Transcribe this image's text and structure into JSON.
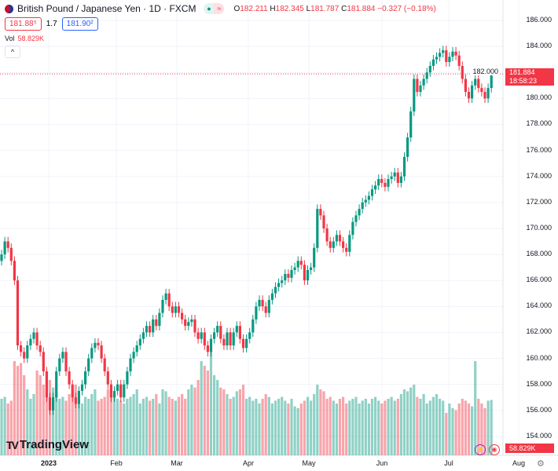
{
  "header": {
    "title": "British Pound / Japanese Yen · 1D · FXCM",
    "open_label": "O",
    "open": "182.211",
    "high_label": "H",
    "high": "182.345",
    "low_label": "L",
    "low": "181.787",
    "close_label": "C",
    "close": "181.884",
    "change": "−0.327 (−0.18%)",
    "market_dot": "●",
    "pill_icon": "≈"
  },
  "quote": {
    "bid": "181.88⁵",
    "spread": "1.7",
    "ask": "181.90²"
  },
  "volume": {
    "label": "Vol",
    "value": "58.829K"
  },
  "collapse_icon": "^",
  "current": {
    "price": "181.884",
    "countdown": "18:58:23",
    "volume": "58.829K"
  },
  "brand": {
    "name": "TradingView",
    "logo": "17"
  },
  "icons": {
    "flash": "⚡",
    "record": "◉",
    "settings": "⚙"
  },
  "colors": {
    "up": "#089981",
    "down": "#f23645"
  },
  "chart_data": {
    "type": "candlestick",
    "ylim": [
      153,
      187
    ],
    "price_ticks": [
      "186.000",
      "184.000",
      "182.000",
      "180.000",
      "178.000",
      "176.000",
      "174.000",
      "172.000",
      "170.000",
      "168.000",
      "166.000",
      "164.000",
      "162.000",
      "160.000",
      "158.000",
      "156.000",
      "154.000"
    ],
    "time_labels": [
      "2023",
      "Feb",
      "Mar",
      "Apr",
      "May",
      "Jun",
      "Jul",
      "Aug"
    ],
    "closes": [
      168,
      169,
      168.5,
      167.5,
      166,
      161,
      160.5,
      160,
      161,
      161.5,
      162,
      161,
      160.5,
      159,
      157,
      156,
      157,
      159,
      160,
      160.5,
      159,
      158,
      157,
      156.5,
      157.5,
      158,
      159,
      160,
      160.8,
      161.2,
      161,
      160,
      159,
      158,
      157,
      157.5,
      158,
      157,
      158,
      159,
      160,
      160.5,
      161,
      161.5,
      162,
      162.5,
      162,
      163,
      162.5,
      163.5,
      164.5,
      165,
      164,
      163.5,
      164,
      163.5,
      163,
      162.5,
      162.8,
      163,
      162,
      161.5,
      162,
      161,
      160.5,
      161.5,
      162,
      162.5,
      161.5,
      161,
      162,
      161,
      162,
      162.5,
      161.5,
      160.8,
      161.5,
      162,
      163,
      164,
      164.5,
      164,
      163.5,
      164.5,
      165,
      165.5,
      165.8,
      166,
      166.5,
      166.2,
      166.8,
      167,
      167.5,
      167.2,
      166,
      166.8,
      167,
      168.5,
      171.5,
      171,
      170,
      169,
      168.5,
      169,
      169.5,
      169,
      168.5,
      168.2,
      169.5,
      170.5,
      171,
      171.5,
      172,
      172.2,
      172.5,
      173,
      173.3,
      173.8,
      173.5,
      173.2,
      173.8,
      174,
      174.3,
      173.5,
      174,
      175.5,
      177,
      179,
      181.5,
      180.5,
      181,
      181.5,
      182,
      182.5,
      183,
      183.2,
      183.5,
      183.7,
      182.8,
      183.2,
      183.6,
      183.3,
      182.5,
      181.5,
      180.5,
      180,
      181,
      181.5,
      180.8,
      180.5,
      180,
      180.8,
      181.884
    ],
    "volumes_k": [
      60,
      62,
      55,
      58,
      100,
      95,
      98,
      85,
      70,
      60,
      65,
      90,
      85,
      75,
      70,
      80,
      72,
      65,
      60,
      62,
      58,
      65,
      70,
      75,
      60,
      55,
      62,
      60,
      65,
      70,
      58,
      60,
      62,
      70,
      68,
      65,
      60,
      58,
      55,
      60,
      62,
      65,
      70,
      55,
      60,
      62,
      58,
      60,
      65,
      55,
      70,
      68,
      62,
      60,
      58,
      62,
      65,
      60,
      70,
      75,
      72,
      80,
      100,
      95,
      90,
      110,
      85,
      80,
      72,
      70,
      65,
      60,
      62,
      68,
      70,
      75,
      60,
      62,
      58,
      60,
      55,
      60,
      65,
      62,
      55,
      58,
      60,
      62,
      58,
      55,
      60,
      52,
      50,
      55,
      58,
      62,
      58,
      65,
      75,
      70,
      68,
      60,
      62,
      58,
      55,
      60,
      62,
      55,
      58,
      60,
      62,
      55,
      58,
      60,
      55,
      60,
      62,
      58,
      55,
      58,
      60,
      62,
      58,
      60,
      65,
      70,
      68,
      72,
      75,
      62,
      60,
      65,
      55,
      58,
      62,
      65,
      60,
      58,
      45,
      55,
      50,
      48,
      55,
      60,
      58,
      55,
      52,
      100,
      60,
      55,
      50,
      58,
      58.829
    ],
    "current_price": 181.884
  }
}
